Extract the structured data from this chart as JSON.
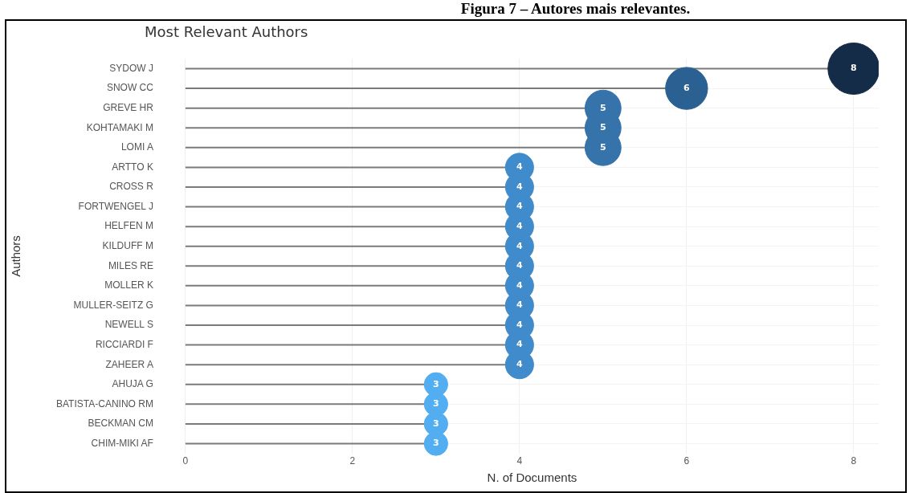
{
  "chart_data": {
    "type": "lollipop",
    "orientation": "horizontal",
    "title": "Most Relevant Authors",
    "xlabel": "N. of Documents",
    "ylabel": "Authors",
    "annotations": [
      "Figura 7 – Autores mais relevantes."
    ],
    "categories": [
      "SYDOW J",
      "SNOW CC",
      "GREVE HR",
      "KOHTAMAKI M",
      "LOMI A",
      "ARTTO K",
      "CROSS R",
      "FORTWENGEL J",
      "HELFEN M",
      "KILDUFF M",
      "MILES RE",
      "MOLLER K",
      "MULLER-SEITZ G",
      "NEWELL S",
      "RICCIARDI F",
      "ZAHEER A",
      "AHUJA G",
      "BATISTA-CANINO RM",
      "BECKMAN CM",
      "CHIM-MIKI AF"
    ],
    "values": [
      8,
      6,
      5,
      5,
      5,
      4,
      4,
      4,
      4,
      4,
      4,
      4,
      4,
      4,
      4,
      4,
      3,
      3,
      3,
      3
    ],
    "sizes": [
      1,
      0.67,
      0.49,
      0.49,
      0.49,
      0.3,
      0.3,
      0.3,
      0.3,
      0.3,
      0.3,
      0.3,
      0.3,
      0.3,
      0.3,
      0.3,
      0.21,
      0.21,
      0.21,
      0.21
    ],
    "colors": [
      "#142c47",
      "#2b6192",
      "#3673aa",
      "#3673aa",
      "#3673aa",
      "#408bcb",
      "#408bcb",
      "#408bcb",
      "#408bcb",
      "#408bcb",
      "#408bcb",
      "#408bcb",
      "#408bcb",
      "#408bcb",
      "#408bcb",
      "#408bcb",
      "#52aef0",
      "#52aef0",
      "#52aef0",
      "#52aef0"
    ],
    "xlim": [
      0,
      8.3
    ],
    "xticks": [
      0,
      2,
      4,
      6,
      8
    ],
    "grid": true,
    "legend": false,
    "data_labels": true
  }
}
